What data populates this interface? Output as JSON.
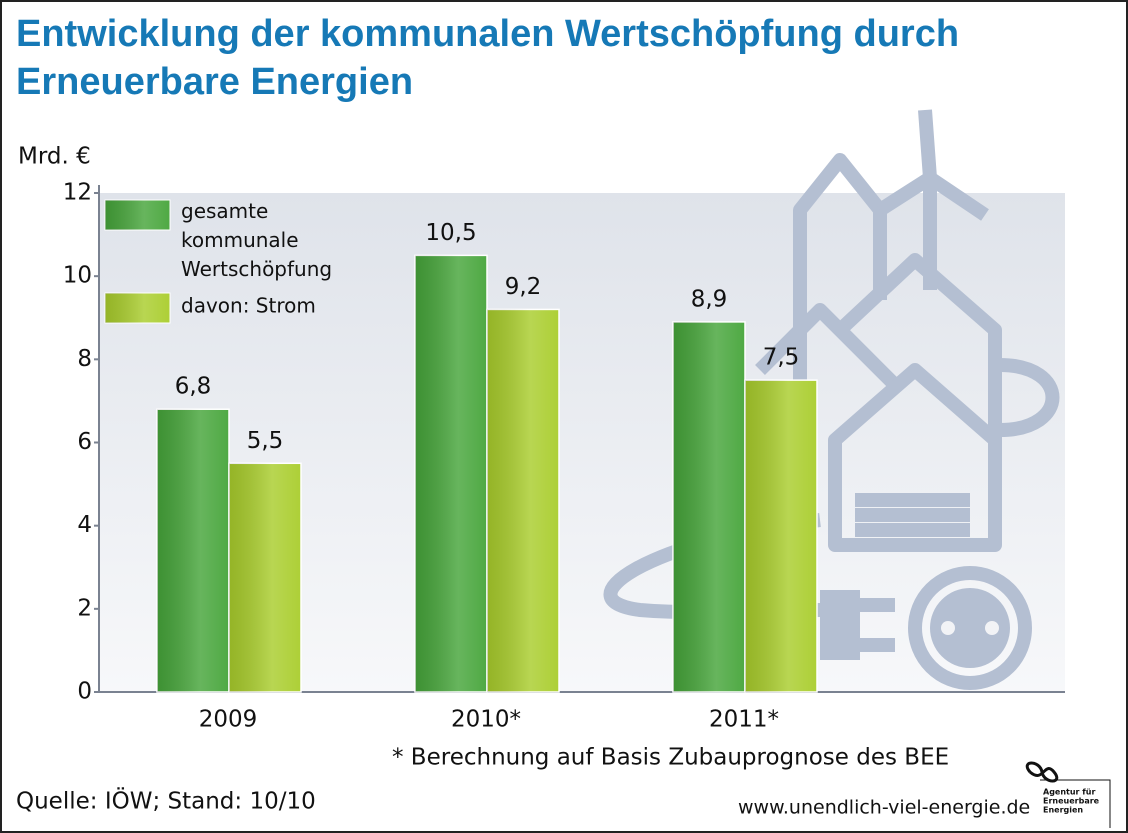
{
  "chart_data": {
    "type": "bar",
    "title": "Entwicklung der kommunalen Wertschöpfung durch Erneuerbare Energien",
    "y_unit": "Mrd. €",
    "categories": [
      "2009",
      "2010*",
      "2011*"
    ],
    "series": [
      {
        "name": "gesamte kommunale Wertschöpfung",
        "color": "#46a53a",
        "values": [
          6.8,
          10.5,
          8.9
        ],
        "value_labels": [
          "6,8",
          "10,5",
          "8,9"
        ]
      },
      {
        "name": "davon: Strom",
        "color": "#a9cd2c",
        "values": [
          5.5,
          9.2,
          7.5
        ],
        "value_labels": [
          "5,5",
          "9,2",
          "7,5"
        ]
      }
    ],
    "ylim": [
      0,
      12
    ],
    "yticks": [
      0,
      2,
      4,
      6,
      8,
      10,
      12
    ],
    "footnote": "* Berechnung auf Basis Zubauprognose des BEE",
    "source": "Quelle: IÖW; Stand: 10/10",
    "url": "www.unendlich-viel-energie.de",
    "logo_lines": [
      "Agentur für",
      "Erneuerbare",
      "Energien"
    ]
  }
}
